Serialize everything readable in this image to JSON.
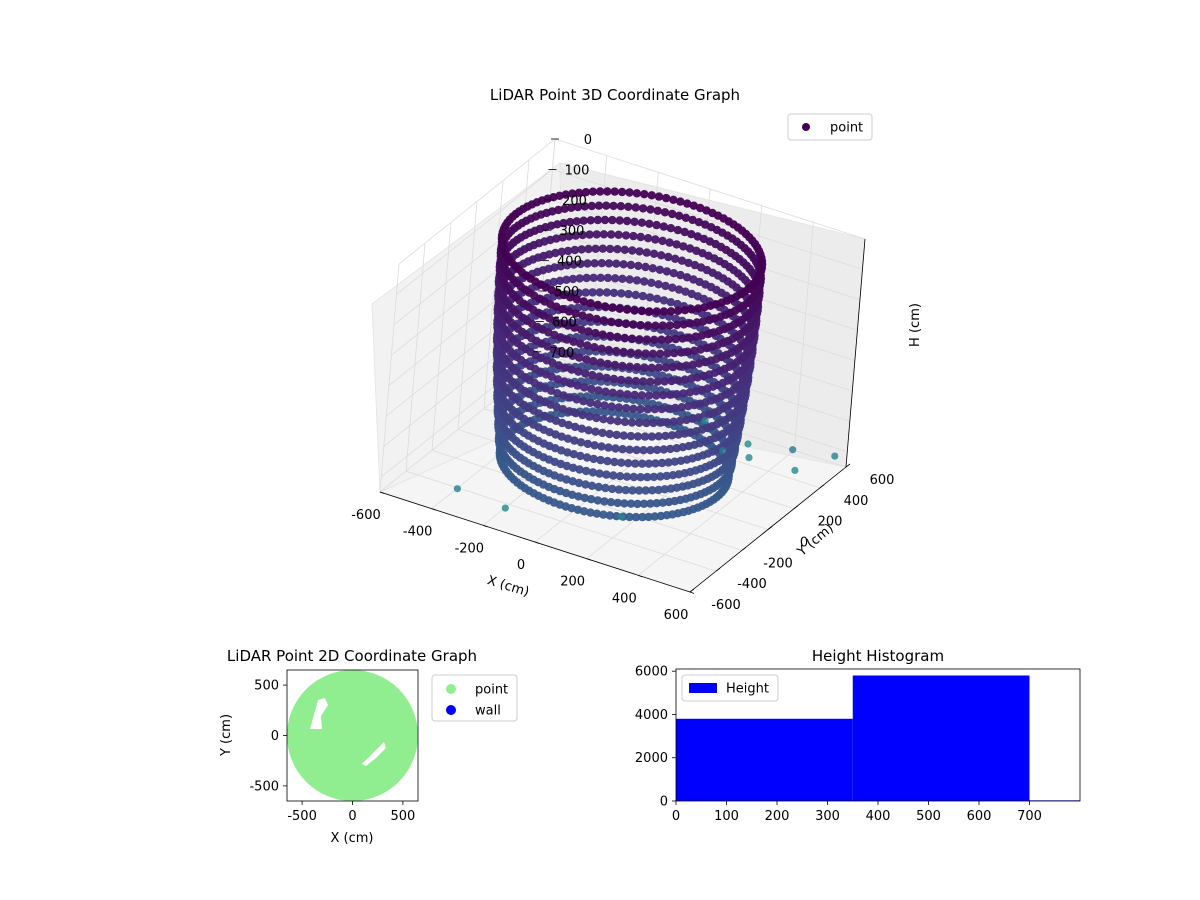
{
  "chart_data": [
    {
      "type": "scatter",
      "projection": "3d",
      "title": "LiDAR Point 3D Coordinate Graph",
      "xlabel": "X (cm)",
      "ylabel": "Y (cm)",
      "zlabel": "H (cm)",
      "legend": {
        "placement": "top-right",
        "entries": [
          {
            "label": "point",
            "color": "#440154"
          }
        ]
      },
      "xlim": [
        -600,
        600
      ],
      "ylim": [
        -600,
        600
      ],
      "zlim": [
        0,
        750
      ],
      "z_inverted": true,
      "x_ticks": [
        "-600",
        "-400",
        "-200",
        "0",
        "200",
        "400",
        "600"
      ],
      "y_ticks": [
        "-600",
        "-400",
        "-200",
        "0",
        "200",
        "400",
        "600"
      ],
      "z_ticks": [
        "0",
        "100",
        "200",
        "300",
        "400",
        "500",
        "600",
        "700"
      ],
      "colormap": "viridis",
      "grid": true,
      "series": [
        {
          "name": "point",
          "structure": "cylindrical wall of points",
          "wall_radius_cm": 450,
          "height_range_cm": [
            0,
            700
          ],
          "outlier_points": [
            {
              "x": 300,
              "y": 450,
              "h": 750
            },
            {
              "x": 260,
              "y": 520,
              "h": 740
            },
            {
              "x": 100,
              "y": 500,
              "h": 700
            },
            {
              "x": -150,
              "y": -540,
              "h": 700
            },
            {
              "x": 500,
              "y": 400,
              "h": 720
            },
            {
              "x": -300,
              "y": -620,
              "h": 650
            },
            {
              "x": 540,
              "y": 280,
              "h": 600
            },
            {
              "x": 600,
              "y": 500,
              "h": 680
            },
            {
              "x": 180,
              "y": -300,
              "h": 720
            },
            {
              "x": 350,
              "y": 120,
              "h": 600
            }
          ]
        }
      ]
    },
    {
      "type": "scatter",
      "title": "LiDAR Point 2D Coordinate Graph",
      "xlabel": "X (cm)",
      "ylabel": "Y (cm)",
      "xlim": [
        -650,
        650
      ],
      "ylim": [
        -650,
        650
      ],
      "x_ticks": [
        "-500",
        "0",
        "500"
      ],
      "y_ticks": [
        "500",
        "0",
        "-500"
      ],
      "legend": {
        "placement": "outside-right",
        "entries": [
          {
            "label": "point",
            "color": "#90ee90"
          },
          {
            "label": "wall",
            "color": "#0000ff"
          }
        ]
      },
      "series": [
        {
          "name": "point",
          "color": "#90ee90",
          "shape": "filled disk",
          "radius_cm": 650
        },
        {
          "name": "wall",
          "color": "#0000ff",
          "points": []
        }
      ]
    },
    {
      "type": "bar",
      "subtype": "histogram",
      "title": "Height Histogram",
      "xlabel": "",
      "ylabel": "",
      "xlim": [
        0,
        800
      ],
      "ylim": [
        0,
        6100
      ],
      "x_ticks": [
        "0",
        "100",
        "200",
        "300",
        "400",
        "500",
        "600",
        "700"
      ],
      "y_ticks": [
        "0",
        "2000",
        "4000",
        "6000"
      ],
      "legend": {
        "placement": "top-left",
        "entries": [
          {
            "label": "Height",
            "color": "#0000ff"
          }
        ]
      },
      "bins": [
        {
          "from": 0,
          "to": 350,
          "count": 3800
        },
        {
          "from": 350,
          "to": 700,
          "count": 5800
        },
        {
          "from": 700,
          "to": 1050,
          "count": 30
        }
      ],
      "color": "#0000ff"
    }
  ]
}
